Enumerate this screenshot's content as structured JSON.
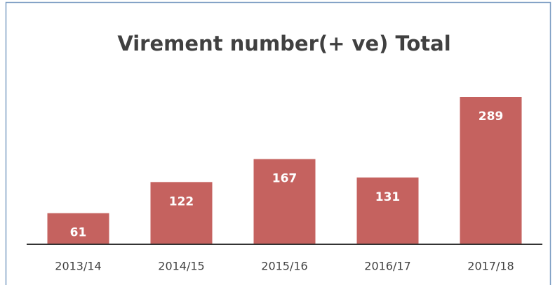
{
  "chart_data": {
    "type": "bar",
    "title": "Virement number(+ ve) Total",
    "categories": [
      "2013/14",
      "2014/15",
      "2015/16",
      "2016/17",
      "2017/18"
    ],
    "values": [
      61,
      122,
      167,
      131,
      289
    ],
    "color": "#c5625f"
  }
}
